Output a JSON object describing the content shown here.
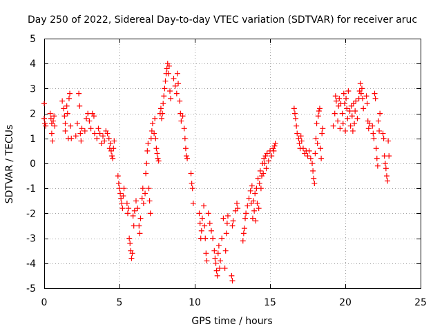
{
  "chart_data": {
    "type": "scatter",
    "title": "Day 250 of 2022, Sidereal Day-to-day VTEC variation (SDTVAR) for receiver aruc",
    "xlabel": "GPS time / hours",
    "ylabel": "SDTVAR / TECUs",
    "xlim": [
      0,
      25
    ],
    "ylim": [
      -5,
      5
    ],
    "xticks": [
      0,
      5,
      10,
      15,
      20,
      25
    ],
    "yticks": [
      -5,
      -4,
      -3,
      -2,
      -1,
      0,
      1,
      2,
      3,
      4,
      5
    ],
    "grid": true,
    "marker": "+",
    "color": "#ff0000",
    "series": [
      {
        "name": "SDTVAR",
        "points": [
          [
            0.0,
            2.4
          ],
          [
            0.0,
            1.8
          ],
          [
            0.05,
            1.6
          ],
          [
            0.1,
            1.5
          ],
          [
            0.4,
            2.0
          ],
          [
            0.45,
            1.8
          ],
          [
            0.5,
            1.6
          ],
          [
            0.5,
            1.2
          ],
          [
            0.55,
            0.9
          ],
          [
            0.6,
            1.7
          ],
          [
            0.65,
            1.9
          ],
          [
            0.7,
            1.5
          ],
          [
            1.2,
            2.5
          ],
          [
            1.3,
            2.2
          ],
          [
            1.35,
            1.9
          ],
          [
            1.4,
            1.6
          ],
          [
            1.4,
            1.3
          ],
          [
            1.5,
            2.3
          ],
          [
            1.55,
            2.0
          ],
          [
            1.6,
            1.0
          ],
          [
            1.65,
            2.6
          ],
          [
            1.7,
            2.8
          ],
          [
            1.75,
            1.5
          ],
          [
            1.8,
            1.0
          ],
          [
            2.1,
            1.1
          ],
          [
            2.2,
            1.6
          ],
          [
            2.3,
            2.8
          ],
          [
            2.35,
            2.3
          ],
          [
            2.4,
            1.2
          ],
          [
            2.45,
            0.9
          ],
          [
            2.5,
            1.4
          ],
          [
            2.7,
            1.3
          ],
          [
            2.8,
            1.8
          ],
          [
            2.9,
            2.0
          ],
          [
            3.0,
            1.7
          ],
          [
            3.1,
            1.4
          ],
          [
            3.2,
            2.0
          ],
          [
            3.3,
            1.9
          ],
          [
            3.35,
            1.2
          ],
          [
            3.5,
            1.0
          ],
          [
            3.6,
            1.4
          ],
          [
            3.7,
            1.2
          ],
          [
            3.8,
            0.8
          ],
          [
            3.9,
            1.1
          ],
          [
            4.0,
            0.9
          ],
          [
            4.1,
            1.3
          ],
          [
            4.2,
            1.2
          ],
          [
            4.3,
            1.0
          ],
          [
            4.35,
            0.6
          ],
          [
            4.4,
            0.8
          ],
          [
            4.45,
            0.5
          ],
          [
            4.5,
            0.3
          ],
          [
            4.55,
            0.2
          ],
          [
            4.6,
            0.6
          ],
          [
            4.65,
            0.9
          ],
          [
            4.9,
            -0.5
          ],
          [
            4.95,
            -0.8
          ],
          [
            5.0,
            -1.0
          ],
          [
            5.05,
            -1.2
          ],
          [
            5.1,
            -1.4
          ],
          [
            5.15,
            -1.6
          ],
          [
            5.2,
            -1.8
          ],
          [
            5.25,
            -1.3
          ],
          [
            5.3,
            -1.0
          ],
          [
            5.5,
            -1.6
          ],
          [
            5.55,
            -2.0
          ],
          [
            5.6,
            -1.8
          ],
          [
            5.65,
            -3.0
          ],
          [
            5.7,
            -3.2
          ],
          [
            5.75,
            -3.5
          ],
          [
            5.8,
            -3.8
          ],
          [
            5.85,
            -3.6
          ],
          [
            5.9,
            -2.1
          ],
          [
            5.95,
            -2.5
          ],
          [
            6.0,
            -1.9
          ],
          [
            6.1,
            -1.5
          ],
          [
            6.2,
            -1.8
          ],
          [
            6.3,
            -2.5
          ],
          [
            6.35,
            -2.8
          ],
          [
            6.4,
            -2.2
          ],
          [
            6.5,
            -1.4
          ],
          [
            6.55,
            -1.0
          ],
          [
            6.6,
            -1.6
          ],
          [
            6.7,
            -1.2
          ],
          [
            6.75,
            -0.4
          ],
          [
            6.8,
            0.0
          ],
          [
            6.85,
            0.5
          ],
          [
            6.9,
            0.8
          ],
          [
            6.95,
            -1.0
          ],
          [
            7.0,
            -1.5
          ],
          [
            7.05,
            -2.0
          ],
          [
            7.1,
            1.0
          ],
          [
            7.15,
            1.3
          ],
          [
            7.2,
            1.6
          ],
          [
            7.3,
            1.2
          ],
          [
            7.35,
            1.8
          ],
          [
            7.4,
            1.0
          ],
          [
            7.45,
            0.6
          ],
          [
            7.5,
            0.4
          ],
          [
            7.55,
            0.2
          ],
          [
            7.6,
            0.1
          ],
          [
            7.7,
            2.0
          ],
          [
            7.75,
            2.2
          ],
          [
            7.8,
            1.8
          ],
          [
            7.85,
            2.0
          ],
          [
            7.9,
            2.4
          ],
          [
            7.95,
            2.7
          ],
          [
            8.0,
            3.0
          ],
          [
            8.05,
            3.3
          ],
          [
            8.1,
            3.6
          ],
          [
            8.15,
            3.8
          ],
          [
            8.2,
            4.0
          ],
          [
            8.25,
            3.6
          ],
          [
            8.3,
            3.9
          ],
          [
            8.35,
            2.9
          ],
          [
            8.4,
            2.6
          ],
          [
            8.6,
            3.4
          ],
          [
            8.7,
            3.1
          ],
          [
            8.8,
            2.8
          ],
          [
            8.85,
            3.6
          ],
          [
            8.9,
            3.2
          ],
          [
            9.0,
            2.5
          ],
          [
            9.05,
            2.0
          ],
          [
            9.1,
            1.7
          ],
          [
            9.2,
            1.9
          ],
          [
            9.3,
            1.4
          ],
          [
            9.35,
            1.0
          ],
          [
            9.4,
            0.6
          ],
          [
            9.45,
            0.3
          ],
          [
            9.5,
            0.2
          ],
          [
            9.75,
            -0.4
          ],
          [
            9.8,
            -0.8
          ],
          [
            9.85,
            -1.0
          ],
          [
            9.9,
            -1.6
          ],
          [
            10.3,
            -2.0
          ],
          [
            10.35,
            -2.4
          ],
          [
            10.4,
            -3.0
          ],
          [
            10.45,
            -2.7
          ],
          [
            10.5,
            -2.2
          ],
          [
            10.6,
            -1.7
          ],
          [
            10.65,
            -2.5
          ],
          [
            10.7,
            -3.0
          ],
          [
            10.75,
            -3.6
          ],
          [
            10.8,
            -3.9
          ],
          [
            10.9,
            -2.0
          ],
          [
            11.0,
            -2.4
          ],
          [
            11.1,
            -2.7
          ],
          [
            11.2,
            -3.0
          ],
          [
            11.3,
            -3.5
          ],
          [
            11.35,
            -3.8
          ],
          [
            11.4,
            -4.0
          ],
          [
            11.45,
            -4.3
          ],
          [
            11.5,
            -4.5
          ],
          [
            11.55,
            -3.6
          ],
          [
            11.6,
            -3.3
          ],
          [
            11.65,
            -4.2
          ],
          [
            11.7,
            -3.9
          ],
          [
            11.8,
            -3.0
          ],
          [
            11.9,
            -2.2
          ],
          [
            12.0,
            -4.2
          ],
          [
            12.05,
            -3.5
          ],
          [
            12.1,
            -2.8
          ],
          [
            12.15,
            -2.4
          ],
          [
            12.2,
            -2.1
          ],
          [
            12.45,
            -4.5
          ],
          [
            12.5,
            -4.7
          ],
          [
            12.5,
            -2.5
          ],
          [
            12.55,
            -2.3
          ],
          [
            12.7,
            -1.9
          ],
          [
            12.8,
            -1.6
          ],
          [
            12.85,
            -1.8
          ],
          [
            13.2,
            -3.1
          ],
          [
            13.25,
            -2.8
          ],
          [
            13.3,
            -2.6
          ],
          [
            13.35,
            -2.2
          ],
          [
            13.4,
            -2.0
          ],
          [
            13.5,
            -1.7
          ],
          [
            13.6,
            -1.4
          ],
          [
            13.7,
            -1.1
          ],
          [
            13.75,
            -1.6
          ],
          [
            13.8,
            -0.9
          ],
          [
            13.85,
            -2.2
          ],
          [
            13.9,
            -1.5
          ],
          [
            13.95,
            -1.9
          ],
          [
            14.0,
            -1.2
          ],
          [
            14.05,
            -2.3
          ],
          [
            14.1,
            -1.0
          ],
          [
            14.15,
            -1.6
          ],
          [
            14.2,
            -0.6
          ],
          [
            14.25,
            -1.8
          ],
          [
            14.3,
            -0.8
          ],
          [
            14.35,
            -0.3
          ],
          [
            14.4,
            -1.0
          ],
          [
            14.45,
            -0.5
          ],
          [
            14.5,
            0.0
          ],
          [
            14.55,
            -0.4
          ],
          [
            14.6,
            0.2
          ],
          [
            14.65,
            0.0
          ],
          [
            14.7,
            0.3
          ],
          [
            14.75,
            -0.2
          ],
          [
            14.8,
            0.4
          ],
          [
            14.9,
            0.1
          ],
          [
            15.0,
            0.5
          ],
          [
            15.1,
            0.3
          ],
          [
            15.2,
            0.6
          ],
          [
            15.25,
            0.5
          ],
          [
            15.3,
            0.7
          ],
          [
            15.35,
            0.8
          ],
          [
            16.6,
            2.2
          ],
          [
            16.65,
            2.0
          ],
          [
            16.7,
            1.8
          ],
          [
            16.75,
            1.5
          ],
          [
            16.8,
            1.2
          ],
          [
            16.9,
            1.0
          ],
          [
            16.95,
            0.8
          ],
          [
            17.0,
            0.6
          ],
          [
            17.05,
            1.1
          ],
          [
            17.1,
            0.9
          ],
          [
            17.2,
            0.6
          ],
          [
            17.3,
            0.4
          ],
          [
            17.4,
            0.5
          ],
          [
            17.5,
            0.3
          ],
          [
            17.6,
            0.5
          ],
          [
            17.7,
            0.2
          ],
          [
            17.8,
            0.0
          ],
          [
            17.85,
            -0.3
          ],
          [
            17.9,
            -0.6
          ],
          [
            17.95,
            -0.8
          ],
          [
            18.0,
            0.4
          ],
          [
            18.05,
            1.0
          ],
          [
            18.1,
            1.6
          ],
          [
            18.15,
            0.8
          ],
          [
            18.2,
            1.9
          ],
          [
            18.25,
            2.1
          ],
          [
            18.3,
            2.2
          ],
          [
            18.35,
            0.6
          ],
          [
            18.4,
            0.2
          ],
          [
            18.45,
            1.2
          ],
          [
            18.5,
            1.4
          ],
          [
            19.2,
            1.5
          ],
          [
            19.3,
            2.0
          ],
          [
            19.35,
            2.7
          ],
          [
            19.4,
            2.5
          ],
          [
            19.5,
            1.7
          ],
          [
            19.55,
            2.3
          ],
          [
            19.6,
            2.6
          ],
          [
            19.65,
            1.4
          ],
          [
            19.7,
            2.4
          ],
          [
            19.8,
            2.0
          ],
          [
            19.85,
            1.6
          ],
          [
            19.9,
            2.8
          ],
          [
            19.95,
            2.4
          ],
          [
            20.0,
            1.3
          ],
          [
            20.05,
            2.6
          ],
          [
            20.1,
            2.2
          ],
          [
            20.15,
            1.8
          ],
          [
            20.2,
            2.9
          ],
          [
            20.3,
            2.1
          ],
          [
            20.35,
            1.5
          ],
          [
            20.4,
            2.3
          ],
          [
            20.45,
            1.9
          ],
          [
            20.5,
            1.3
          ],
          [
            20.55,
            2.4
          ],
          [
            20.6,
            1.6
          ],
          [
            20.65,
            2.1
          ],
          [
            20.7,
            2.5
          ],
          [
            20.8,
            1.8
          ],
          [
            20.9,
            2.6
          ],
          [
            20.95,
            2.9
          ],
          [
            21.0,
            3.2
          ],
          [
            21.05,
            2.8
          ],
          [
            21.1,
            3.0
          ],
          [
            21.15,
            2.6
          ],
          [
            21.2,
            2.2
          ],
          [
            21.4,
            2.7
          ],
          [
            21.45,
            2.4
          ],
          [
            21.5,
            1.7
          ],
          [
            21.55,
            1.4
          ],
          [
            21.6,
            1.6
          ],
          [
            21.8,
            1.5
          ],
          [
            21.85,
            1.2
          ],
          [
            21.9,
            1.0
          ],
          [
            21.95,
            2.8
          ],
          [
            22.0,
            2.6
          ],
          [
            22.05,
            0.6
          ],
          [
            22.1,
            0.2
          ],
          [
            22.15,
            -0.1
          ],
          [
            22.2,
            1.7
          ],
          [
            22.25,
            1.3
          ],
          [
            22.3,
            2.0
          ],
          [
            22.5,
            1.2
          ],
          [
            22.55,
            1.0
          ],
          [
            22.6,
            0.3
          ],
          [
            22.65,
            0.0
          ],
          [
            22.7,
            -0.2
          ],
          [
            22.75,
            -0.5
          ],
          [
            22.8,
            -0.7
          ],
          [
            22.85,
            0.9
          ],
          [
            22.9,
            0.3
          ]
        ]
      }
    ]
  }
}
